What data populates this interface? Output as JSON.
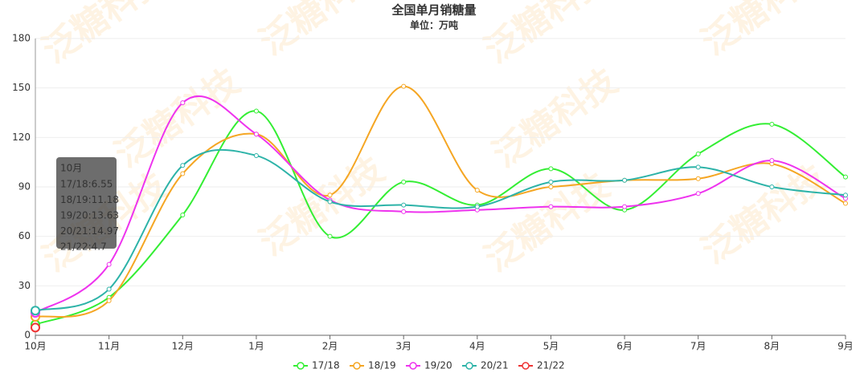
{
  "chart_data": {
    "type": "line",
    "title": "全国单月销糖量",
    "subtitle": "单位：万吨",
    "watermark": "泛糖科技",
    "categories": [
      "10月",
      "11月",
      "12月",
      "1月",
      "2月",
      "3月",
      "4月",
      "5月",
      "6月",
      "7月",
      "8月",
      "9月"
    ],
    "series": [
      {
        "name": "17/18",
        "color": "#33ee33",
        "values": [
          6.55,
          23,
          73,
          136,
          60,
          93,
          79,
          101,
          76,
          110,
          128,
          96
        ]
      },
      {
        "name": "18/19",
        "color": "#f5a623",
        "values": [
          11.18,
          21,
          98,
          122,
          85,
          151,
          88,
          90,
          94,
          95,
          104,
          80
        ]
      },
      {
        "name": "19/20",
        "color": "#ee33ee",
        "values": [
          13.63,
          43,
          141,
          122,
          82,
          75,
          76,
          78,
          78,
          86,
          106,
          83
        ]
      },
      {
        "name": "20/21",
        "color": "#2db3a8",
        "values": [
          14.97,
          28,
          103,
          109,
          81,
          79,
          78,
          93,
          94,
          102,
          90,
          85
        ]
      },
      {
        "name": "21/22",
        "color": "#ee3333",
        "values": [
          4.7,
          null,
          null,
          null,
          null,
          null,
          null,
          null,
          null,
          null,
          null,
          null
        ]
      }
    ],
    "ylim": [
      0,
      180
    ],
    "yticks": [
      0,
      30,
      60,
      90,
      120,
      150,
      180
    ],
    "grid": true,
    "tooltip": {
      "title": "10月",
      "lines": [
        "17/18:6.55",
        "18/19:11.18",
        "19/20:13.63",
        "20/21:14.97",
        "21/22:4.7"
      ]
    }
  }
}
